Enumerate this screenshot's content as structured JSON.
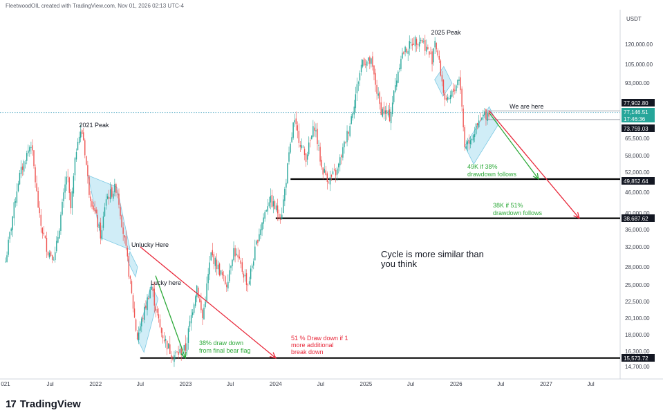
{
  "header": {
    "attribution": "FleetwoodOIL created with TradingView.com, Nov 01, 2026 02:13 UTC-4"
  },
  "footer": {
    "logo_text": "TradingView",
    "logo_mark": "17"
  },
  "colors": {
    "up": "#26a69a",
    "down": "#ef5350",
    "green": "#2eaa3a",
    "red": "#e8283a",
    "channel": "#a9dff0",
    "black": "#000000",
    "dotted": "#5fb1c9"
  },
  "chart_data": {
    "type": "candlestick",
    "symbol_currency": "USDT",
    "y_ticks": [
      "120,000.00",
      "105,000.00",
      "93,000.00",
      "65,500.00",
      "58,000.00",
      "52,000.00",
      "46,000.00",
      "40,000.00",
      "36,000.00",
      "32,000.00",
      "28,000.00",
      "25,000.00",
      "22,500.00",
      "20,100.00",
      "18,000.00",
      "16,300.00",
      "14,700.00"
    ],
    "y_tick_values": [
      120000,
      105000,
      93000,
      65500,
      58000,
      52000,
      46000,
      40000,
      36000,
      32000,
      28000,
      25000,
      22500,
      20100,
      18000,
      16300,
      14700
    ],
    "x_ticks": [
      "021",
      "Jul",
      "2022",
      "Jul",
      "2023",
      "Jul",
      "2024",
      "Jul",
      "2025",
      "Jul",
      "2026",
      "Jul",
      "2027",
      "Jul"
    ],
    "x_tick_dates": [
      "2021-01",
      "2021-07",
      "2022-01",
      "2022-07",
      "2023-01",
      "2023-07",
      "2024-01",
      "2024-07",
      "2025-01",
      "2025-07",
      "2026-01",
      "2026-07",
      "2027-01",
      "2027-07"
    ],
    "price_labels": [
      {
        "text": "77,902.80",
        "value": 77902.8,
        "style": "dark"
      },
      {
        "text": "77,146.51",
        "value": 77146.51,
        "style": "teal"
      },
      {
        "text": "17:46:36",
        "value": 76200,
        "style": "teal"
      },
      {
        "text": "73,759.03",
        "value": 73759.03,
        "style": "dark"
      },
      {
        "text": "49,852.64",
        "value": 49852.64,
        "style": "dark"
      },
      {
        "text": "38,687.62",
        "value": 38687.62,
        "style": "dark"
      },
      {
        "text": "15,573.72",
        "value": 15573.72,
        "style": "dark"
      }
    ],
    "horizontal_levels": [
      {
        "value": 49852.64,
        "from": "2024-03"
      },
      {
        "value": 38687.62,
        "from": "2024-01"
      },
      {
        "value": 15573.72,
        "from": "2022-07"
      },
      {
        "value": 77902.8,
        "from": "2026-05",
        "color": "grey"
      },
      {
        "value": 73759.03,
        "from": "2026-05",
        "color": "grey"
      }
    ],
    "current_price": 77146.51,
    "annotations": {
      "peak_2021": "2021 Peak",
      "peak_2025": "2025 Peak",
      "we_are_here": "We are here",
      "unlucky": "Unlucky Here",
      "lucky": "Lucky here",
      "draw38": [
        "38% draw down",
        "from final bear flag"
      ],
      "draw51": [
        "51 % Draw down if 1",
        "more additional",
        "break down"
      ],
      "k49": [
        "49K if 38%",
        "drawdown follows"
      ],
      "k38": [
        "38K if 51%",
        "drawdown follows"
      ],
      "cycle": [
        "Cycle is more similar than",
        "you think"
      ]
    },
    "price_path": [
      [
        "2021-01-01",
        29000
      ],
      [
        "2021-02-20",
        49000
      ],
      [
        "2021-04-14",
        63500
      ],
      [
        "2021-05-20",
        38000
      ],
      [
        "2021-06-22",
        31000
      ],
      [
        "2021-07-20",
        30000
      ],
      [
        "2021-09-07",
        52000
      ],
      [
        "2021-09-22",
        41000
      ],
      [
        "2021-10-20",
        66000
      ],
      [
        "2021-11-10",
        68000
      ],
      [
        "2021-12-04",
        47000
      ],
      [
        "2022-01-24",
        34000
      ],
      [
        "2022-02-10",
        44000
      ],
      [
        "2022-03-28",
        47500
      ],
      [
        "2022-05-12",
        28500
      ],
      [
        "2022-06-18",
        17600
      ],
      [
        "2022-08-14",
        25000
      ],
      [
        "2022-09-21",
        18500
      ],
      [
        "2022-11-09",
        15800
      ],
      [
        "2022-12-31",
        16500
      ],
      [
        "2023-02-15",
        25000
      ],
      [
        "2023-03-10",
        20000
      ],
      [
        "2023-04-14",
        30500
      ],
      [
        "2023-06-15",
        25000
      ],
      [
        "2023-07-14",
        31500
      ],
      [
        "2023-09-11",
        25000
      ],
      [
        "2023-10-24",
        35000
      ],
      [
        "2023-12-05",
        44000
      ],
      [
        "2024-01-23",
        39000
      ],
      [
        "2024-03-14",
        73000
      ],
      [
        "2024-05-01",
        57000
      ],
      [
        "2024-06-07",
        71500
      ],
      [
        "2024-07-05",
        53500
      ],
      [
        "2024-08-05",
        49500
      ],
      [
        "2024-09-06",
        52500
      ],
      [
        "2024-10-29",
        72500
      ],
      [
        "2024-12-17",
        108000
      ],
      [
        "2025-01-22",
        106000
      ],
      [
        "2025-02-28",
        79000
      ],
      [
        "2025-04-07",
        75000
      ],
      [
        "2025-05-22",
        111000
      ],
      [
        "2025-07-14",
        123000
      ],
      [
        "2025-08-14",
        124000
      ],
      [
        "2025-09-26",
        108500
      ],
      [
        "2025-10-06",
        126000
      ],
      [
        "2025-11-21",
        80500
      ],
      [
        "2025-12-20",
        88000
      ],
      [
        "2026-01-15",
        97500
      ],
      [
        "2026-02-05",
        62000
      ],
      [
        "2026-03-20",
        69000
      ],
      [
        "2026-04-25",
        76000
      ],
      [
        "2026-05-15",
        77146.51
      ]
    ],
    "channels": [
      {
        "p1": [
          "2021-12-01",
          51000
        ],
        "p2": [
          "2022-03-28",
          47500
        ],
        "lower": [
          "2022-01-24",
          34000
        ],
        "upper_offset": 1
      },
      {
        "p1": [
          "2022-06-18",
          17600
        ],
        "p2": [
          "2022-08-14",
          25000
        ],
        "width": 0.16
      },
      {
        "p1": [
          "2022-05-12",
          29000
        ],
        "p2": [
          "2022-05-20",
          31000
        ],
        "width": 0.08
      },
      {
        "p1": [
          "2025-10-06",
          95000
        ],
        "p2": [
          "2025-11-12",
          103500
        ],
        "width": 0.16
      },
      {
        "p1": [
          "2026-02-05",
          62000
        ],
        "p2": [
          "2026-05-15",
          80000
        ],
        "width": 0.17
      }
    ],
    "arrows": [
      {
        "color": "green",
        "from": [
          "2022-09-01",
          26500
        ],
        "to": [
          "2022-12-31",
          15573.72
        ]
      },
      {
        "color": "red",
        "from": [
          "2022-07-01",
          32000
        ],
        "to": [
          "2024-01-01",
          15573.72
        ]
      },
      {
        "color": "green",
        "from": [
          "2026-05-15",
          77000
        ],
        "to": [
          "2026-12-01",
          49852.64
        ]
      },
      {
        "color": "red",
        "from": [
          "2026-05-15",
          78000
        ],
        "to": [
          "2027-05-15",
          38687.62
        ]
      }
    ]
  }
}
